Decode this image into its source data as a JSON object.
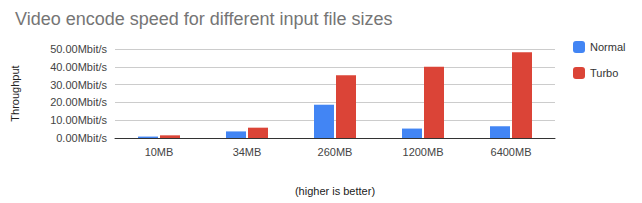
{
  "chart_data": {
    "type": "bar",
    "title": "Video encode speed for different input file sizes",
    "x_label": "(higher is better)",
    "y_label": "Throughput",
    "categories": [
      "10MB",
      "34MB",
      "260MB",
      "1200MB",
      "6400MB"
    ],
    "series": [
      {
        "name": "Normal",
        "color": "#4285f4",
        "values": [
          0.8,
          3.7,
          18.7,
          5.3,
          6.6
        ]
      },
      {
        "name": "Turbo",
        "color": "#db4437",
        "values": [
          1.5,
          5.8,
          35.3,
          40.0,
          48.2
        ]
      }
    ],
    "ylim": [
      0,
      50
    ],
    "yticks": [
      {
        "value": 0,
        "label": "0.00Mbit/s"
      },
      {
        "value": 10,
        "label": "10.00Mbit/s"
      },
      {
        "value": 20,
        "label": "20.00Mbit/s"
      },
      {
        "value": 30,
        "label": "30.00Mbit/s"
      },
      {
        "value": 40,
        "label": "40.00Mbit/s"
      },
      {
        "value": 50,
        "label": "50.00Mbit/s"
      }
    ],
    "grid": true,
    "legend": "right"
  }
}
